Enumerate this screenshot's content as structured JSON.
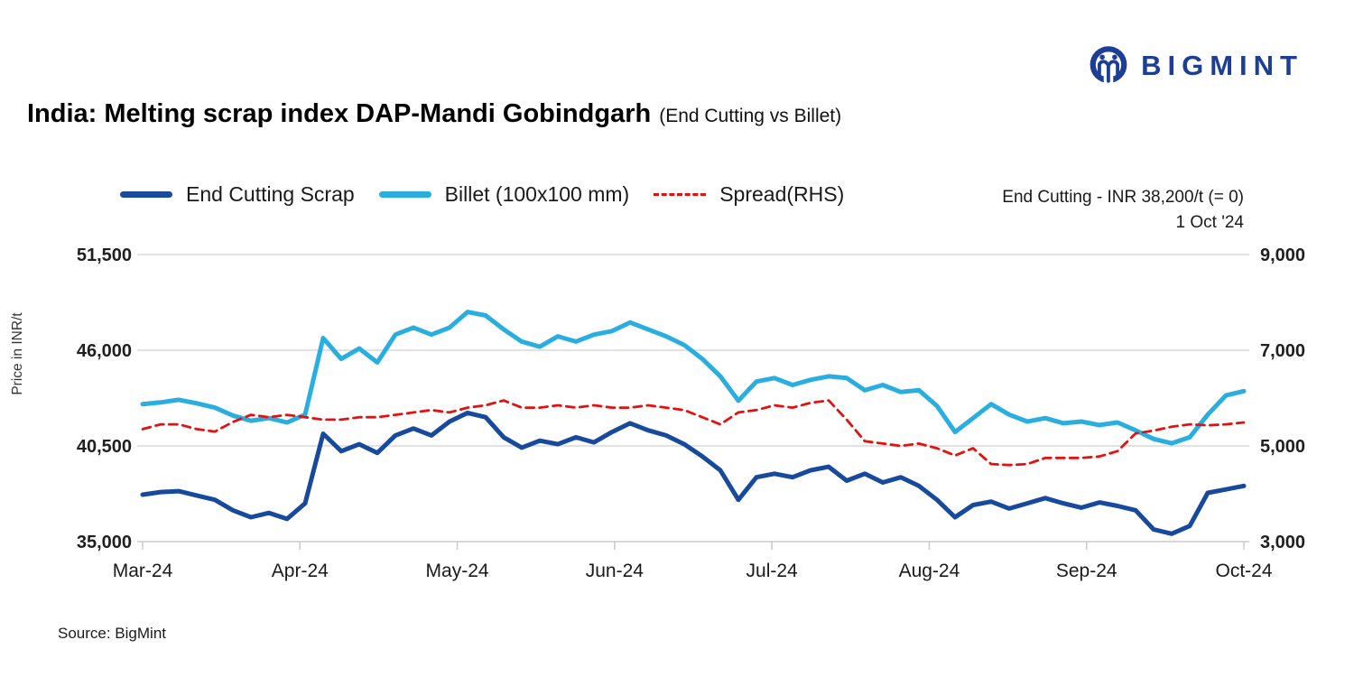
{
  "logo": {
    "brand": "BIGMINT"
  },
  "title": {
    "main": "India: Melting scrap index DAP-Mandi Gobindgarh",
    "sub": "(End Cutting vs Billet)"
  },
  "annotation": {
    "line1": "End Cutting - INR 38,200/t (= 0)",
    "line2": "1 Oct '24"
  },
  "source": "Source: BigMint",
  "colors": {
    "brand_blue": "#1c3e94",
    "grid": "#d9d9d9",
    "axis_line": "#c9c9c9"
  },
  "chart_data": {
    "type": "line",
    "title": "India: Melting scrap index DAP-Mandi Gobindgarh (End Cutting vs Billet)",
    "x_axis": {
      "tick_labels": [
        "Mar-24",
        "Apr-24",
        "May-24",
        "Jun-24",
        "Jul-24",
        "Aug-24",
        "Sep-24",
        "Oct-24"
      ]
    },
    "left_axis": {
      "label": "Price in INR/t",
      "range": [
        35000,
        51500
      ],
      "ticks": [
        35000,
        40500,
        46000,
        51500
      ],
      "tick_labels": [
        "35,000",
        "40,500",
        "46,000",
        "51,500"
      ]
    },
    "right_axis": {
      "range": [
        3000,
        9000
      ],
      "ticks": [
        3000,
        5000,
        7000,
        9000
      ],
      "tick_labels": [
        "3,000",
        "5,000",
        "7,000",
        "9,000"
      ]
    },
    "sampling_note": "62 points per series, uniform ~3.5-day steps from 1 Mar 2024 to 1 Oct 2024",
    "series": [
      {
        "name": "End Cutting Scrap",
        "axis": "left",
        "color": "#17499d",
        "style": "solid",
        "values": [
          37700,
          37850,
          37900,
          37650,
          37400,
          36800,
          36400,
          36650,
          36300,
          37200,
          41200,
          40200,
          40600,
          40100,
          41100,
          41500,
          41100,
          41900,
          42400,
          42150,
          41000,
          40400,
          40800,
          40600,
          41000,
          40700,
          41300,
          41800,
          41400,
          41100,
          40600,
          39900,
          39100,
          37400,
          38700,
          38900,
          38700,
          39100,
          39300,
          38500,
          38900,
          38400,
          38700,
          38200,
          37400,
          36400,
          37100,
          37300,
          36900,
          37200,
          37500,
          37200,
          36950,
          37250,
          37050,
          36800,
          35700,
          35450,
          35900,
          37800,
          38000,
          38200
        ]
      },
      {
        "name": "Billet (100x100 mm)",
        "axis": "left",
        "color": "#2aaee0",
        "style": "solid",
        "values": [
          42900,
          43000,
          43150,
          42950,
          42700,
          42250,
          41950,
          42100,
          41850,
          42300,
          46700,
          45500,
          46100,
          45300,
          46900,
          47300,
          46900,
          47300,
          48200,
          48000,
          47200,
          46500,
          46200,
          46800,
          46500,
          46900,
          47100,
          47600,
          47200,
          46800,
          46300,
          45500,
          44500,
          43100,
          44200,
          44400,
          44000,
          44300,
          44500,
          44400,
          43700,
          44000,
          43600,
          43700,
          42800,
          41300,
          42100,
          42900,
          42300,
          41900,
          42100,
          41800,
          41900,
          41700,
          41850,
          41400,
          40900,
          40650,
          41000,
          42300,
          43400,
          43650
        ]
      },
      {
        "name": "Spread(RHS)",
        "axis": "right",
        "color": "#e01313",
        "style": "dashed",
        "values": [
          5350,
          5450,
          5450,
          5350,
          5300,
          5500,
          5650,
          5600,
          5650,
          5600,
          5550,
          5550,
          5600,
          5600,
          5650,
          5700,
          5750,
          5700,
          5800,
          5850,
          5950,
          5800,
          5800,
          5850,
          5800,
          5850,
          5800,
          5800,
          5850,
          5800,
          5750,
          5600,
          5450,
          5700,
          5750,
          5850,
          5800,
          5900,
          5950,
          5550,
          5100,
          5050,
          5000,
          5050,
          4950,
          4800,
          4950,
          4620,
          4600,
          4620,
          4750,
          4750,
          4750,
          4780,
          4890,
          5260,
          5320,
          5400,
          5450,
          5430,
          5450,
          5490
        ]
      }
    ]
  }
}
